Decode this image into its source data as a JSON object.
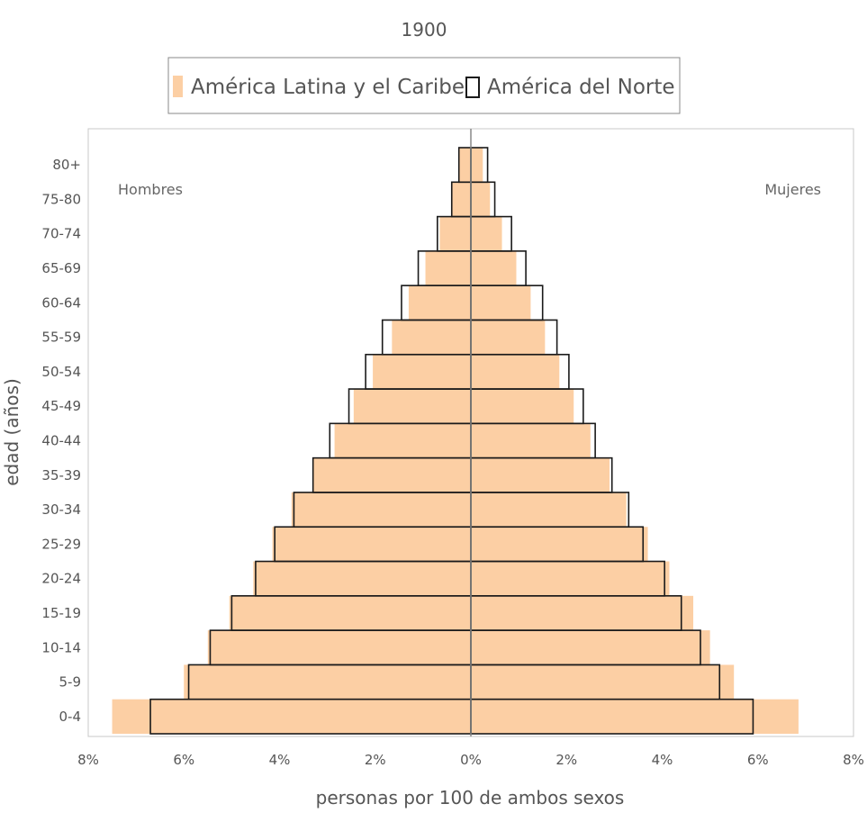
{
  "chart_data": {
    "type": "bar",
    "title": "1900",
    "xlabel": "personas por 100 de ambos sexos",
    "ylabel": "edad (años)",
    "side_labels": {
      "left": "Hombres",
      "right": "Mujeres"
    },
    "legend": {
      "placement": "top-center"
    },
    "xlim": [
      -8,
      8
    ],
    "x_tick_values": [
      -8,
      -6,
      -4,
      -2,
      0,
      2,
      4,
      6,
      8
    ],
    "x_tick_labels": [
      "8%",
      "6%",
      "4%",
      "2%",
      "0%",
      "2%",
      "4%",
      "6%",
      "8%"
    ],
    "grid": false,
    "categories": [
      "0-4",
      "5-9",
      "10-14",
      "15-19",
      "20-24",
      "25-29",
      "30-34",
      "35-39",
      "40-44",
      "45-49",
      "50-54",
      "55-59",
      "60-64",
      "65-69",
      "70-74",
      "75-80",
      "80+"
    ],
    "series": [
      {
        "name": "América Latina y el Caribe",
        "style": "filled",
        "color": "#fccfa4",
        "hombres": [
          7.5,
          6.0,
          5.5,
          5.05,
          4.55,
          4.15,
          3.75,
          3.3,
          2.85,
          2.45,
          2.05,
          1.65,
          1.3,
          0.95,
          0.65,
          0.4,
          0.25
        ],
        "mujeres": [
          6.85,
          5.5,
          5.0,
          4.65,
          4.15,
          3.7,
          3.25,
          2.9,
          2.5,
          2.15,
          1.85,
          1.55,
          1.25,
          0.95,
          0.65,
          0.4,
          0.25
        ]
      },
      {
        "name": "América del Norte",
        "style": "outline",
        "color": "#1a1a1a",
        "hombres": [
          6.7,
          5.9,
          5.45,
          5.0,
          4.5,
          4.1,
          3.7,
          3.3,
          2.95,
          2.55,
          2.2,
          1.85,
          1.45,
          1.1,
          0.7,
          0.4,
          0.25
        ],
        "mujeres": [
          5.9,
          5.2,
          4.8,
          4.4,
          4.05,
          3.6,
          3.3,
          2.95,
          2.6,
          2.35,
          2.05,
          1.8,
          1.5,
          1.15,
          0.85,
          0.5,
          0.35
        ]
      }
    ]
  }
}
